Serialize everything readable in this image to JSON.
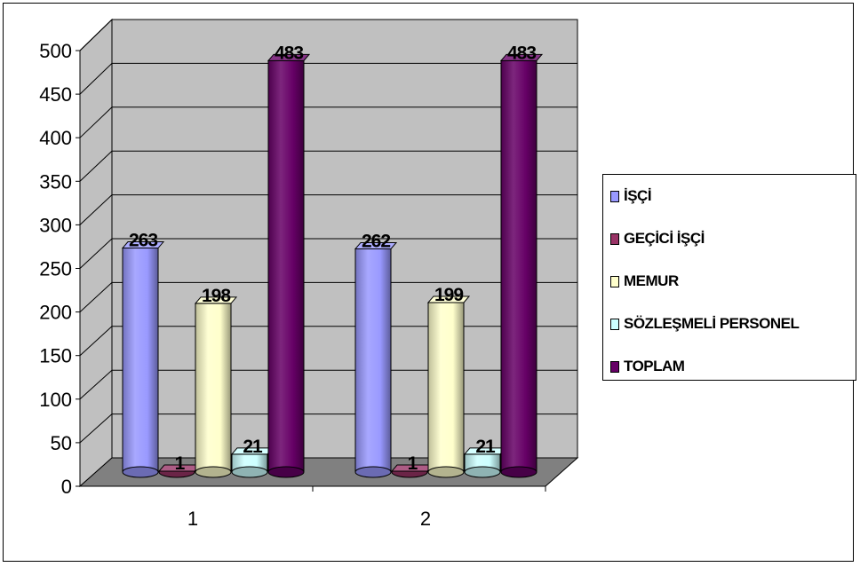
{
  "chart_data": {
    "type": "bar",
    "style": "3d-clustered-column",
    "categories": [
      "1",
      "2"
    ],
    "series": [
      {
        "name": "İŞÇİ",
        "values": [
          263,
          262
        ],
        "color": "#9999ff"
      },
      {
        "name": "GEÇİCİ İŞÇİ",
        "values": [
          1,
          1
        ],
        "color": "#993366"
      },
      {
        "name": "MEMUR",
        "values": [
          198,
          199
        ],
        "color": "#ffffcc"
      },
      {
        "name": "SÖZLEŞMELİ PERSONEL",
        "values": [
          21,
          21
        ],
        "color": "#ccffff"
      },
      {
        "name": "TOPLAM",
        "values": [
          483,
          483
        ],
        "color": "#660066"
      }
    ],
    "yticks": [
      "0",
      "50",
      "100",
      "150",
      "200",
      "250",
      "300",
      "350",
      "400",
      "450",
      "500"
    ],
    "ylim": [
      0,
      500
    ],
    "grid": true,
    "legend": "right",
    "wall_color": "#c0c0c0",
    "floor_color": "#808080"
  }
}
